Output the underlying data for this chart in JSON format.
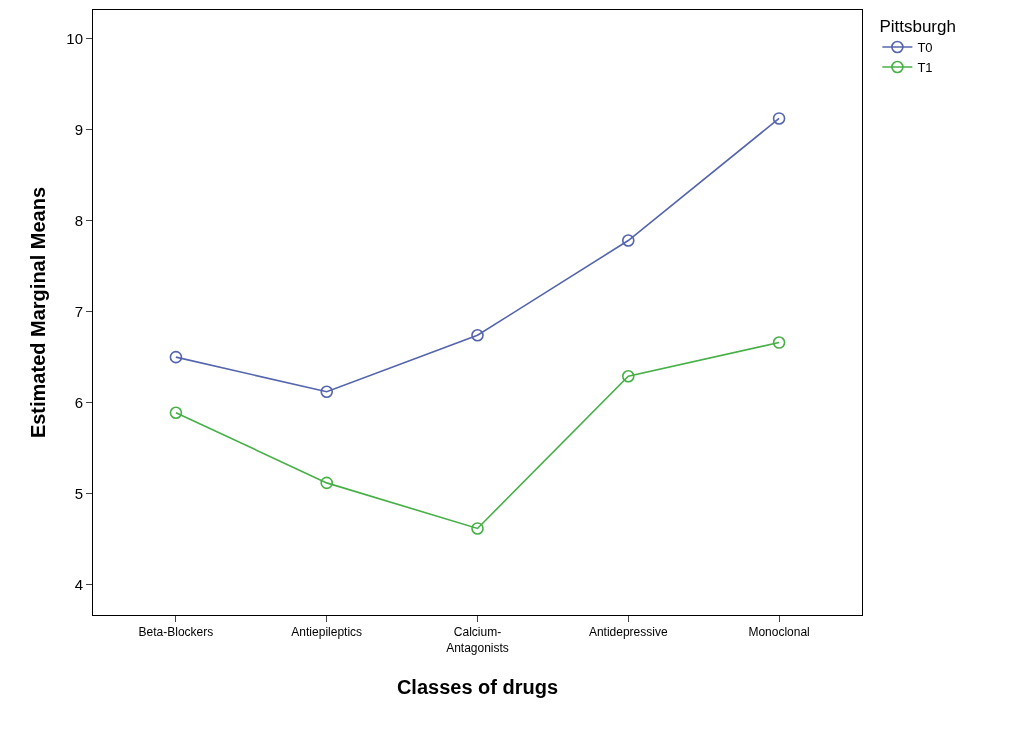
{
  "chart_data": {
    "type": "line",
    "xlabel": "Classes of drugs",
    "ylabel": "Estimated Marginal Means",
    "legend_title": "Pittsburgh",
    "categories": [
      "Beta-Blockers",
      "Antiepileptics",
      "Calcium-\nAntagonists",
      "Antidepressive",
      "Monoclonal"
    ],
    "series": [
      {
        "name": "T0",
        "color": "#5464ad",
        "values": [
          6.5,
          6.12,
          6.74,
          7.78,
          9.12
        ]
      },
      {
        "name": "T1",
        "color": "#45b045",
        "values": [
          5.89,
          5.12,
          4.62,
          6.29,
          6.66
        ]
      }
    ],
    "ylim": [
      3.67,
      10.31
    ],
    "yticks": [
      4,
      5,
      6,
      7,
      8,
      9,
      10
    ],
    "grid": false,
    "legend": "top right",
    "marker": "circle",
    "line_style": "solid"
  }
}
